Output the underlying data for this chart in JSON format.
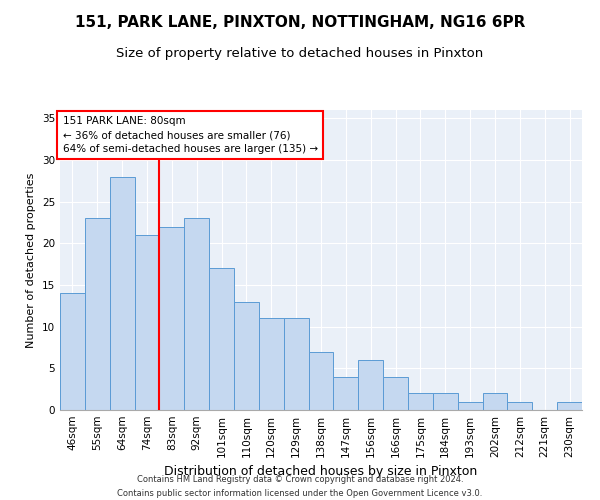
{
  "title1": "151, PARK LANE, PINXTON, NOTTINGHAM, NG16 6PR",
  "title2": "Size of property relative to detached houses in Pinxton",
  "xlabel": "Distribution of detached houses by size in Pinxton",
  "ylabel": "Number of detached properties",
  "footnote1": "Contains HM Land Registry data © Crown copyright and database right 2024.",
  "footnote2": "Contains public sector information licensed under the Open Government Licence v3.0.",
  "categories": [
    "46sqm",
    "55sqm",
    "64sqm",
    "74sqm",
    "83sqm",
    "92sqm",
    "101sqm",
    "110sqm",
    "120sqm",
    "129sqm",
    "138sqm",
    "147sqm",
    "156sqm",
    "166sqm",
    "175sqm",
    "184sqm",
    "193sqm",
    "202sqm",
    "212sqm",
    "221sqm",
    "230sqm"
  ],
  "values": [
    14,
    23,
    28,
    21,
    22,
    23,
    17,
    13,
    11,
    11,
    7,
    4,
    6,
    4,
    2,
    2,
    1,
    2,
    1,
    0,
    1
  ],
  "bar_color": "#c5d8f0",
  "bar_edge_color": "#5b9bd5",
  "reference_line_x": 3.5,
  "reference_line_color": "red",
  "annotation_line1": "151 PARK LANE: 80sqm",
  "annotation_line2": "← 36% of detached houses are smaller (76)",
  "annotation_line3": "64% of semi-detached houses are larger (135) →",
  "annotation_box_color": "white",
  "annotation_box_edge_color": "red",
  "ylim": [
    0,
    36
  ],
  "yticks": [
    0,
    5,
    10,
    15,
    20,
    25,
    30,
    35
  ],
  "bg_color": "#eaf0f8",
  "grid_color": "white",
  "title1_fontsize": 11,
  "title2_fontsize": 9.5,
  "ylabel_fontsize": 8,
  "xlabel_fontsize": 9,
  "tick_fontsize": 7.5,
  "annotation_fontsize": 7.5,
  "footnote_fontsize": 6
}
